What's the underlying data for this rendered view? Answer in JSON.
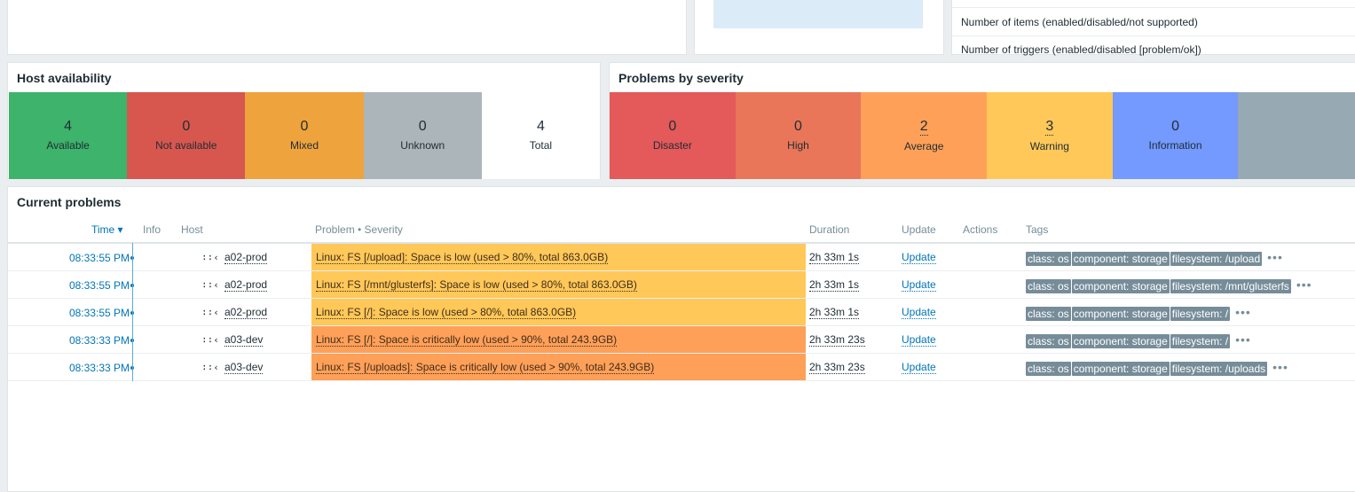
{
  "system_info": {
    "rows": [
      "Number of items (enabled/disabled/not supported)",
      "Number of triggers (enabled/disabled [problem/ok])"
    ]
  },
  "host_availability": {
    "title": "Host availability",
    "cells": [
      {
        "value": "4",
        "label": "Available",
        "color": "#3db36b"
      },
      {
        "value": "0",
        "label": "Not available",
        "color": "#d7574f"
      },
      {
        "value": "0",
        "label": "Mixed",
        "color": "#eea33c"
      },
      {
        "value": "0",
        "label": "Unknown",
        "color": "#acb5ba"
      },
      {
        "value": "4",
        "label": "Total",
        "color": "#ffffff"
      }
    ]
  },
  "problems_by_severity": {
    "title": "Problems by severity",
    "cells": [
      {
        "value": "0",
        "label": "Disaster",
        "color": "#e45959"
      },
      {
        "value": "0",
        "label": "High",
        "color": "#e97659"
      },
      {
        "value": "2",
        "label": "Average",
        "color": "#ffa059"
      },
      {
        "value": "3",
        "label": "Warning",
        "color": "#ffc859"
      },
      {
        "value": "0",
        "label": "Information",
        "color": "#7499ff"
      },
      {
        "value": "",
        "label": "",
        "color": "#97aab3"
      }
    ]
  },
  "current_problems": {
    "title": "Current problems",
    "headers": {
      "time": "Time ▾",
      "info": "Info",
      "host": "Host",
      "problem": "Problem • Severity",
      "duration": "Duration",
      "update": "Update",
      "actions": "Actions",
      "tags": "Tags"
    },
    "rows": [
      {
        "time": "08:33:55 PM",
        "host_icon": "∶∶‹",
        "host": "a02-prod",
        "problem": "Linux: FS [/upload]: Space is low (used > 80%, total 863.0GB)",
        "severity_color": "#ffc859",
        "duration": "2h 33m 1s",
        "update": "Update",
        "tags": [
          "class: os",
          "component: storage",
          "filesystem: /upload"
        ]
      },
      {
        "time": "08:33:55 PM",
        "host_icon": "∶∶‹",
        "host": "a02-prod",
        "problem": "Linux: FS [/mnt/glusterfs]: Space is low (used > 80%, total 863.0GB)",
        "severity_color": "#ffc859",
        "duration": "2h 33m 1s",
        "update": "Update",
        "tags": [
          "class: os",
          "component: storage",
          "filesystem: /mnt/glusterfs"
        ]
      },
      {
        "time": "08:33:55 PM",
        "host_icon": "∶∶‹",
        "host": "a02-prod",
        "problem": "Linux: FS [/]: Space is low (used > 80%, total 863.0GB)",
        "severity_color": "#ffc859",
        "duration": "2h 33m 1s",
        "update": "Update",
        "tags": [
          "class: os",
          "component: storage",
          "filesystem: /"
        ]
      },
      {
        "time": "08:33:33 PM",
        "host_icon": "∶∶‹",
        "host": "a03-dev",
        "problem": "Linux: FS [/]: Space is critically low (used > 90%, total 243.9GB)",
        "severity_color": "#ffa059",
        "duration": "2h 33m 23s",
        "update": "Update",
        "tags": [
          "class: os",
          "component: storage",
          "filesystem: /"
        ]
      },
      {
        "time": "08:33:33 PM",
        "host_icon": "∶∶‹",
        "host": "a03-dev",
        "problem": "Linux: FS [/uploads]: Space is critically low (used > 90%, total 243.9GB)",
        "severity_color": "#ffa059",
        "duration": "2h 33m 23s",
        "update": "Update",
        "tags": [
          "class: os",
          "component: storage",
          "filesystem: /uploads"
        ]
      }
    ],
    "more_symbol": "•••"
  }
}
